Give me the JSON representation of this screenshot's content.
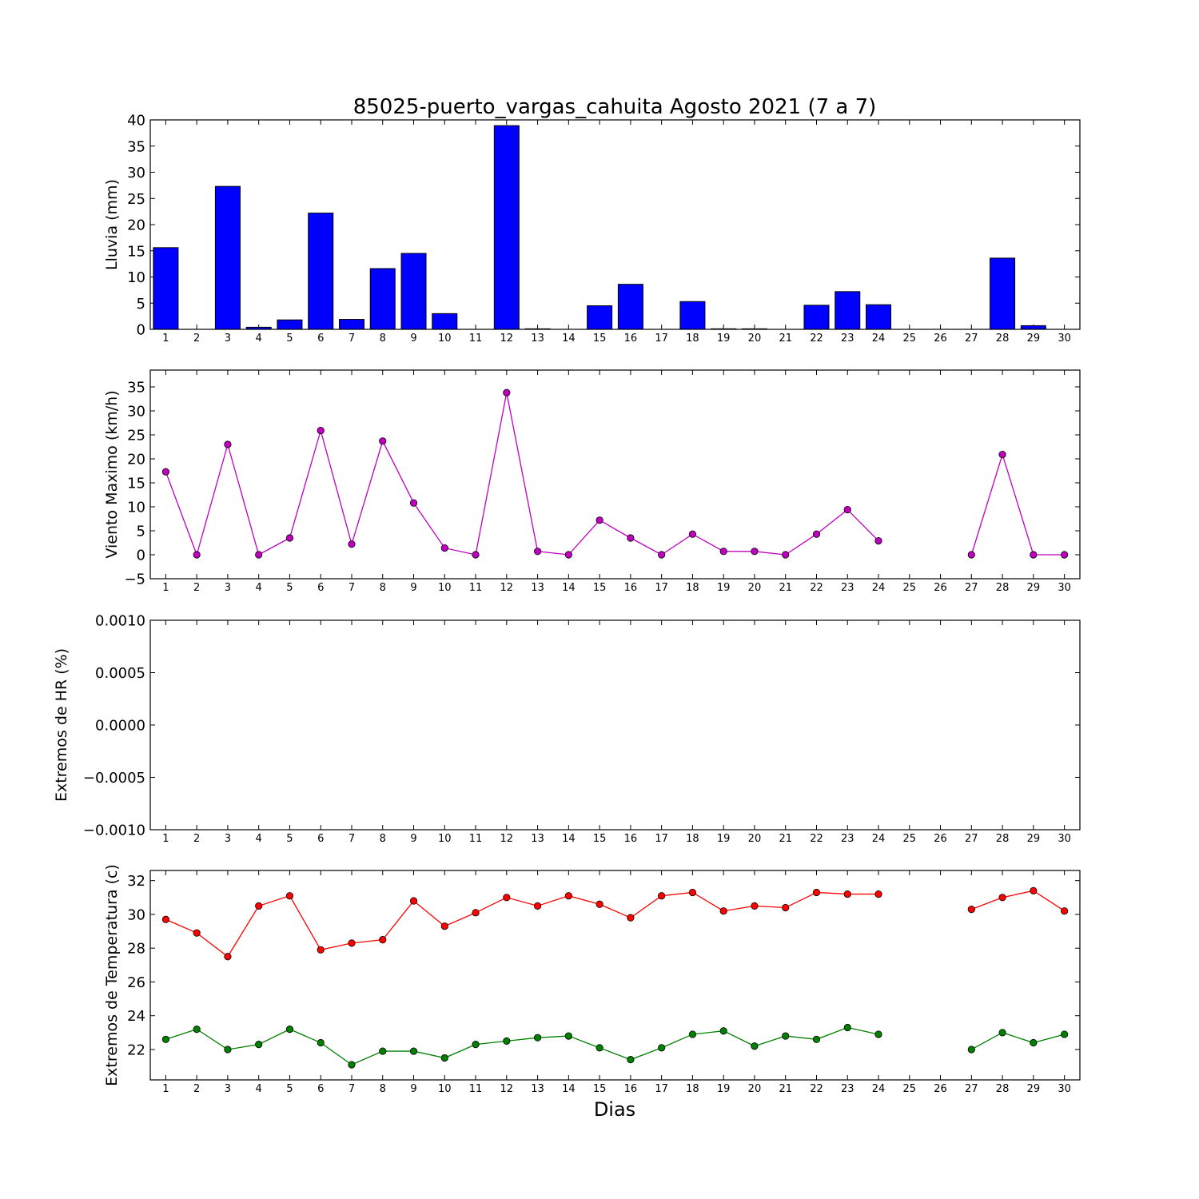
{
  "chart_data": {
    "title": "85025-puerto_vargas_cahuita Agosto 2021  (7 a 7)",
    "xlabel": "Dias",
    "x": [
      1,
      2,
      3,
      4,
      5,
      6,
      7,
      8,
      9,
      10,
      11,
      12,
      13,
      14,
      15,
      16,
      17,
      18,
      19,
      20,
      21,
      22,
      23,
      24,
      25,
      26,
      27,
      28,
      29,
      30
    ],
    "panels": [
      {
        "type": "bar",
        "ylabel": "Lluvia (mm)",
        "ylim": [
          0,
          40
        ],
        "yticks": [
          0,
          5,
          10,
          15,
          20,
          25,
          30,
          35,
          40
        ],
        "ytick_labels": [
          "0",
          "5",
          "10",
          "15",
          "20",
          "25",
          "30",
          "35",
          "40"
        ],
        "series": [
          {
            "color": "#0000ff",
            "values": [
              15.6,
              0,
              27.3,
              0.4,
              1.8,
              22.2,
              1.9,
              11.6,
              14.5,
              3.0,
              0,
              38.9,
              0.1,
              0,
              4.5,
              8.6,
              0,
              5.3,
              0.1,
              0.1,
              0,
              4.6,
              7.2,
              4.7,
              0,
              0,
              0,
              13.6,
              0.7,
              0
            ]
          }
        ]
      },
      {
        "type": "line",
        "ylabel": "Viento Maximo (km/h)",
        "ylim": [
          -5,
          38.5
        ],
        "yticks": [
          -5,
          0,
          5,
          10,
          15,
          20,
          25,
          30,
          35
        ],
        "ytick_labels": [
          "−5",
          "0",
          "5",
          "10",
          "15",
          "20",
          "25",
          "30",
          "35"
        ],
        "series": [
          {
            "color": "#bf00bf",
            "values": [
              17.3,
              0,
              23.0,
              0,
              3.5,
              25.9,
              2.2,
              23.7,
              10.8,
              1.4,
              0,
              33.8,
              0.7,
              0,
              7.2,
              3.5,
              0,
              4.3,
              0.7,
              0.7,
              0,
              4.3,
              9.4,
              2.9,
              null,
              null,
              0,
              20.9,
              0,
              0
            ]
          }
        ]
      },
      {
        "type": "line",
        "ylabel": "Extremos de HR (%)",
        "ylim": [
          -0.001,
          0.001
        ],
        "yticks": [
          -0.001,
          -0.0005,
          0.0,
          0.0005,
          0.001
        ],
        "ytick_labels": [
          "−0.0010",
          "−0.0005",
          "0.0000",
          "0.0005",
          "0.0010"
        ],
        "series": []
      },
      {
        "type": "line",
        "ylabel": "Extremos de Temperatura (c)",
        "ylim": [
          20.2,
          32.6
        ],
        "yticks": [
          22,
          24,
          26,
          28,
          30,
          32
        ],
        "ytick_labels": [
          "22",
          "24",
          "26",
          "28",
          "30",
          "32"
        ],
        "series": [
          {
            "color": "#ff0000",
            "values": [
              29.7,
              28.9,
              27.5,
              30.5,
              31.1,
              27.9,
              28.3,
              28.5,
              30.8,
              29.3,
              30.1,
              31.0,
              30.5,
              31.1,
              30.6,
              29.8,
              31.1,
              31.3,
              30.2,
              30.5,
              30.4,
              31.3,
              31.2,
              31.2,
              null,
              null,
              30.3,
              31.0,
              31.4,
              30.2
            ]
          },
          {
            "color": "#008000",
            "values": [
              22.6,
              23.2,
              22.0,
              22.3,
              23.2,
              22.4,
              21.1,
              21.9,
              21.9,
              21.5,
              22.3,
              22.5,
              22.7,
              22.8,
              22.1,
              21.4,
              22.1,
              22.9,
              23.1,
              22.2,
              22.8,
              22.6,
              23.3,
              22.9,
              null,
              null,
              22.0,
              23.0,
              22.4,
              22.9
            ]
          }
        ]
      }
    ]
  }
}
